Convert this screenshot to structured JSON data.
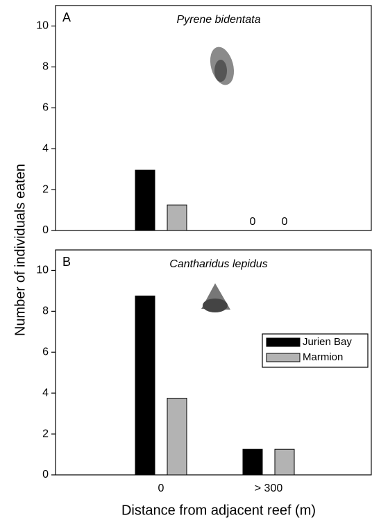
{
  "chart_data": [
    {
      "type": "bar",
      "panel": "A",
      "title": "Pyrene bidentata",
      "ylabel": "Number of individuals eaten",
      "categories": [
        null,
        null
      ],
      "series": [
        {
          "name": "Jurien Bay",
          "color": "#000000",
          "values": [
            2.95,
            0
          ],
          "value_labels": [
            null,
            "0"
          ]
        },
        {
          "name": "Marmion",
          "color": "#b3b3b3",
          "values": [
            1.25,
            0
          ],
          "value_labels": [
            null,
            "0"
          ]
        }
      ],
      "ylim": [
        0,
        11
      ],
      "yticks": [
        0,
        2,
        4,
        6,
        8,
        10
      ]
    },
    {
      "type": "bar",
      "panel": "B",
      "title": "Cantharidus lepidus",
      "xlabel": "Distance from adjacent reef (m)",
      "categories": [
        "0",
        "> 300"
      ],
      "series": [
        {
          "name": "Jurien Bay",
          "color": "#000000",
          "values": [
            8.75,
            1.25
          ]
        },
        {
          "name": "Marmion",
          "color": "#b3b3b3",
          "values": [
            3.75,
            1.25
          ]
        }
      ],
      "ylim": [
        0,
        11
      ],
      "yticks": [
        0,
        2,
        4,
        6,
        8,
        10
      ],
      "legend": "right"
    }
  ]
}
